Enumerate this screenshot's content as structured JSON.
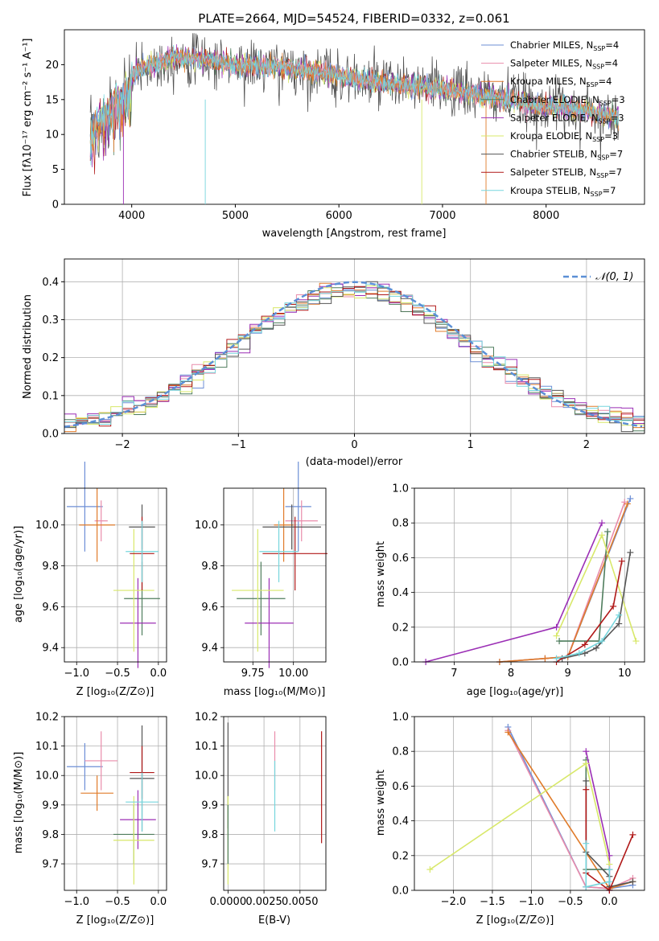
{
  "page_title": "PLATE=2664, MJD=54524, FIBERID=0332, z=0.061",
  "legend_items": [
    {
      "label": "Chabrier MILES, N",
      "sub": "SSP",
      "suffix": "=4",
      "color": "#6d8fd6"
    },
    {
      "label": "Salpeter MILES, N",
      "sub": "SSP",
      "suffix": "=4",
      "color": "#e98cab"
    },
    {
      "label": "Kroupa MILES, N",
      "sub": "SSP",
      "suffix": "=4",
      "color": "#e07b2a"
    },
    {
      "label": "Chabrier ELODIE, N",
      "sub": "SSP",
      "suffix": "=3",
      "color": "#4f7d5d"
    },
    {
      "label": "Salpeter ELODIE, N",
      "sub": "SSP",
      "suffix": "=3",
      "color": "#9b2fb5"
    },
    {
      "label": "Kroupa ELODIE, N",
      "sub": "SSP",
      "suffix": "=3",
      "color": "#d8e86a"
    },
    {
      "label": "Chabrier STELIB, N",
      "sub": "SSP",
      "suffix": "=7",
      "color": "#555555"
    },
    {
      "label": "Salpeter STELIB, N",
      "sub": "SSP",
      "suffix": "=7",
      "color": "#b01818"
    },
    {
      "label": "Kroupa STELIB, N",
      "sub": "SSP",
      "suffix": "=7",
      "color": "#76d6dd"
    }
  ],
  "axes": {
    "spec_x": "wavelength [Angstrom, rest frame]",
    "spec_y": "Flux [fλ10⁻¹⁷ erg cm⁻² s⁻¹ A⁻¹]",
    "hist_x": "(data-model)/error",
    "hist_y": "Normed distribution",
    "hist_legend": "𝒩(0, 1)",
    "age": "age  [log₁₀(age/yr)]",
    "mass": "mass [log₁₀(M/M⊙)]",
    "Z": "Z [log₁₀(Z/Z⊙)]",
    "ebv": "E(B-V)",
    "mass_weight": "mass weight"
  },
  "chart_data": [
    {
      "type": "line",
      "title": "PLATE=2664, MJD=54524, FIBERID=0332, z=0.061",
      "xlabel": "wavelength [Angstrom, rest frame]",
      "ylabel": "Flux [fλ10⁻¹⁷ erg cm⁻² s⁻¹ A⁻¹]",
      "xlim": [
        3350,
        8950
      ],
      "ylim": [
        0,
        25
      ],
      "xticks": [
        4000,
        5000,
        6000,
        7000,
        8000
      ],
      "yticks": [
        0,
        5,
        10,
        15,
        20
      ],
      "continuum": {
        "x": [
          3600,
          3700,
          3800,
          3900,
          4000,
          4100,
          4200,
          4300,
          4400,
          4600,
          4800,
          5000,
          5200,
          5500,
          5800,
          6000,
          6200,
          6500,
          6800,
          7000,
          7300,
          7600,
          7900,
          8200,
          8500,
          8700
        ],
        "y": [
          12,
          14,
          15.5,
          17,
          18.5,
          19.5,
          20,
          20.5,
          21,
          21,
          20.5,
          20,
          19.8,
          19.5,
          19,
          18.3,
          17.8,
          17.2,
          16.8,
          16.5,
          15.8,
          15,
          14.2,
          13.8,
          13,
          12.5
        ]
      },
      "absorption_lines": [
        [
          3934,
          0
        ],
        [
          4300,
          16
        ],
        [
          4861,
          17
        ],
        [
          5175,
          17
        ],
        [
          5892,
          16.5
        ]
      ],
      "noise_sigma": 1.2
    },
    {
      "type": "line",
      "xlabel": "(data-model)/error",
      "ylabel": "Normed distribution",
      "xlim": [
        -2.5,
        2.5
      ],
      "ylim": [
        0,
        0.46
      ],
      "xticks": [
        -2,
        -1,
        0,
        1,
        2
      ],
      "yticks": [
        0.0,
        0.1,
        0.2,
        0.3,
        0.4
      ],
      "bin_width": 0.1,
      "reference_curve": "N(0,1)",
      "grid": true,
      "legend_placement": "top-right"
    },
    {
      "type": "scatter",
      "xlabel": "Z [log₁₀(Z/Z⊙)]",
      "ylabel": "age  [log₁₀(age/yr)]",
      "xlim": [
        -1.15,
        0.1
      ],
      "ylim": [
        9.33,
        10.18
      ],
      "xticks": [
        -1.0,
        -0.5,
        0.0
      ],
      "yticks": [
        9.4,
        9.6,
        9.8,
        10.0
      ],
      "points": [
        {
          "x": -0.9,
          "y": 10.09,
          "xerr": 0.22,
          "yerr": 0.22,
          "c": 0
        },
        {
          "x": -0.7,
          "y": 10.02,
          "xerr": 0.08,
          "yerr": 0.1,
          "c": 1
        },
        {
          "x": -0.75,
          "y": 10.0,
          "xerr": 0.22,
          "yerr": 0.18,
          "c": 2
        },
        {
          "x": -0.2,
          "y": 9.64,
          "xerr": 0.22,
          "yerr": 0.18,
          "c": 3
        },
        {
          "x": -0.25,
          "y": 9.52,
          "xerr": 0.22,
          "yerr": 0.22,
          "c": 4
        },
        {
          "x": -0.3,
          "y": 9.68,
          "xerr": 0.25,
          "yerr": 0.3,
          "c": 5
        },
        {
          "x": -0.2,
          "y": 9.99,
          "xerr": 0.16,
          "yerr": 0.11,
          "c": 6
        },
        {
          "x": -0.2,
          "y": 9.86,
          "xerr": 0.15,
          "yerr": 0.18,
          "c": 7
        },
        {
          "x": -0.2,
          "y": 9.87,
          "xerr": 0.2,
          "yerr": 0.15,
          "c": 8
        }
      ]
    },
    {
      "type": "scatter",
      "xlabel": "mass [log₁₀(M/M⊙)]",
      "xlim": [
        9.57,
        10.2
      ],
      "ylim": [
        9.33,
        10.18
      ],
      "xticks": [
        9.75,
        10.0
      ],
      "yticks": [
        9.4,
        9.6,
        9.8,
        10.0
      ],
      "points": [
        {
          "x": 10.03,
          "y": 10.09,
          "xerr": 0.08,
          "yerr": 0.22,
          "c": 0
        },
        {
          "x": 10.05,
          "y": 10.02,
          "xerr": 0.1,
          "yerr": 0.1,
          "c": 1
        },
        {
          "x": 9.94,
          "y": 10.0,
          "xerr": 0.06,
          "yerr": 0.18,
          "c": 2
        },
        {
          "x": 9.8,
          "y": 9.64,
          "xerr": 0.15,
          "yerr": 0.18,
          "c": 3
        },
        {
          "x": 9.85,
          "y": 9.52,
          "xerr": 0.15,
          "yerr": 0.22,
          "c": 4
        },
        {
          "x": 9.78,
          "y": 9.68,
          "xerr": 0.16,
          "yerr": 0.3,
          "c": 5
        },
        {
          "x": 9.99,
          "y": 9.99,
          "xerr": 0.18,
          "yerr": 0.11,
          "c": 6
        },
        {
          "x": 10.01,
          "y": 9.86,
          "xerr": 0.2,
          "yerr": 0.18,
          "c": 7
        },
        {
          "x": 9.91,
          "y": 9.87,
          "xerr": 0.12,
          "yerr": 0.15,
          "c": 8
        }
      ]
    },
    {
      "type": "line",
      "xlabel": "age  [log₁₀(age/yr)]",
      "ylabel": "mass weight",
      "xlim": [
        6.3,
        10.35
      ],
      "ylim": [
        0,
        1
      ],
      "xticks": [
        7,
        8,
        9,
        10
      ],
      "yticks": [
        0.0,
        0.2,
        0.4,
        0.6,
        0.8,
        1.0
      ],
      "grid": true,
      "series": [
        {
          "c": 0,
          "x": [
            7.8,
            8.6,
            9.0,
            10.1
          ],
          "y": [
            0.0,
            0.02,
            0.03,
            0.94
          ]
        },
        {
          "c": 1,
          "x": [
            7.8,
            8.6,
            9.0,
            10.0
          ],
          "y": [
            0.0,
            0.02,
            0.03,
            0.92
          ]
        },
        {
          "c": 2,
          "x": [
            7.8,
            8.6,
            9.0,
            10.05
          ],
          "y": [
            0.0,
            0.02,
            0.03,
            0.91
          ]
        },
        {
          "c": 3,
          "x": [
            8.85,
            9.55,
            9.7
          ],
          "y": [
            0.12,
            0.12,
            0.75
          ]
        },
        {
          "c": 4,
          "x": [
            6.5,
            8.8,
            9.6
          ],
          "y": [
            0.0,
            0.2,
            0.8
          ]
        },
        {
          "c": 5,
          "x": [
            8.8,
            9.6,
            10.2
          ],
          "y": [
            0.15,
            0.73,
            0.12
          ]
        },
        {
          "c": 6,
          "x": [
            8.9,
            9.3,
            9.5,
            9.9,
            10.1
          ],
          "y": [
            0.02,
            0.05,
            0.08,
            0.22,
            0.63
          ]
        },
        {
          "c": 7,
          "x": [
            8.8,
            9.3,
            9.8,
            9.95
          ],
          "y": [
            0.0,
            0.1,
            0.32,
            0.58
          ]
        },
        {
          "c": 8,
          "x": [
            8.8,
            9.2,
            9.6,
            9.9
          ],
          "y": [
            0.02,
            0.05,
            0.12,
            0.27
          ]
        }
      ]
    },
    {
      "type": "scatter",
      "xlabel": "Z [log₁₀(Z/Z⊙)]",
      "ylabel": "mass [log₁₀(M/M⊙)]",
      "xlim": [
        -1.15,
        0.1
      ],
      "ylim": [
        9.61,
        10.2
      ],
      "xticks": [
        -1.0,
        -0.5,
        0.0
      ],
      "yticks": [
        9.7,
        9.8,
        9.9,
        10.0,
        10.1,
        10.2
      ],
      "points": [
        {
          "x": -0.9,
          "y": 10.03,
          "xerr": 0.22,
          "yerr": 0.08,
          "c": 0
        },
        {
          "x": -0.7,
          "y": 10.05,
          "xerr": 0.2,
          "yerr": 0.1,
          "c": 1
        },
        {
          "x": -0.75,
          "y": 9.94,
          "xerr": 0.2,
          "yerr": 0.06,
          "c": 2
        },
        {
          "x": -0.3,
          "y": 9.8,
          "xerr": 0.25,
          "yerr": 0.1,
          "c": 3
        },
        {
          "x": -0.25,
          "y": 9.85,
          "xerr": 0.22,
          "yerr": 0.1,
          "c": 4
        },
        {
          "x": -0.3,
          "y": 9.78,
          "xerr": 0.25,
          "yerr": 0.15,
          "c": 5
        },
        {
          "x": -0.2,
          "y": 9.99,
          "xerr": 0.15,
          "yerr": 0.18,
          "c": 6
        },
        {
          "x": -0.2,
          "y": 10.01,
          "xerr": 0.15,
          "yerr": 0.09,
          "c": 7
        },
        {
          "x": -0.2,
          "y": 9.91,
          "xerr": 0.2,
          "yerr": 0.1,
          "c": 8
        }
      ]
    },
    {
      "type": "scatter",
      "xlabel": "E(B-V)",
      "xlim": [
        -0.0003,
        0.0068
      ],
      "ylim": [
        9.61,
        10.2
      ],
      "xticks": [
        0.0,
        0.0025,
        0.005
      ],
      "xticklabels": [
        "0.0000",
        "0.0025",
        "0.0050"
      ],
      "yticks": [
        9.7,
        9.8,
        9.9,
        10.0,
        10.1,
        10.2
      ],
      "points": [
        {
          "x": 0.0,
          "y": 10.0,
          "xerr": 0,
          "yerr": 0.18,
          "c": 6
        },
        {
          "x": 0.0,
          "y": 9.78,
          "xerr": 0,
          "yerr": 0.15,
          "c": 5
        },
        {
          "x": 0.0,
          "y": 9.8,
          "xerr": 0,
          "yerr": 0.1,
          "c": 3
        },
        {
          "x": 0.00325,
          "y": 10.05,
          "xerr": 0,
          "yerr": 0.1,
          "c": 1
        },
        {
          "x": 0.00325,
          "y": 9.93,
          "xerr": 0,
          "yerr": 0.12,
          "c": 8
        },
        {
          "x": 0.0065,
          "y": 9.96,
          "xerr": 0,
          "yerr": 0.19,
          "c": 7
        }
      ]
    },
    {
      "type": "line",
      "xlabel": "Z [log₁₀(Z/Z⊙)]",
      "ylabel": "mass weight",
      "xlim": [
        -2.5,
        0.45
      ],
      "ylim": [
        0,
        1
      ],
      "xticks": [
        -2.0,
        -1.5,
        -1.0,
        -0.5,
        0.0
      ],
      "yticks": [
        0.0,
        0.2,
        0.4,
        0.6,
        0.8,
        1.0
      ],
      "grid": true,
      "series": [
        {
          "c": 0,
          "x": [
            -1.3,
            -0.3,
            0.0,
            0.3
          ],
          "y": [
            0.94,
            0.02,
            0.01,
            0.03
          ]
        },
        {
          "c": 1,
          "x": [
            -1.3,
            -0.3,
            0.0,
            0.3
          ],
          "y": [
            0.92,
            0.02,
            0.01,
            0.07
          ]
        },
        {
          "c": 2,
          "x": [
            -1.3,
            0.0,
            0.3
          ],
          "y": [
            0.91,
            0.01,
            0.05
          ]
        },
        {
          "c": 3,
          "x": [
            -0.3,
            -0.3,
            0.0
          ],
          "y": [
            0.75,
            0.12,
            0.12
          ]
        },
        {
          "c": 4,
          "x": [
            -0.3,
            0.0,
            0.0
          ],
          "y": [
            0.8,
            0.2,
            0.0
          ]
        },
        {
          "c": 5,
          "x": [
            -2.3,
            -0.3,
            0.0
          ],
          "y": [
            0.12,
            0.73,
            0.15
          ]
        },
        {
          "c": 6,
          "x": [
            -0.3,
            -0.3,
            0.0,
            0.0,
            0.3
          ],
          "y": [
            0.63,
            0.22,
            0.08,
            0.02,
            0.05
          ]
        },
        {
          "c": 7,
          "x": [
            -0.3,
            -0.3,
            0.0,
            0.3
          ],
          "y": [
            0.58,
            0.1,
            0.0,
            0.32
          ]
        },
        {
          "c": 8,
          "x": [
            -0.3,
            -0.3,
            0.0,
            0.0
          ],
          "y": [
            0.27,
            0.02,
            0.05,
            0.12
          ]
        }
      ]
    }
  ]
}
